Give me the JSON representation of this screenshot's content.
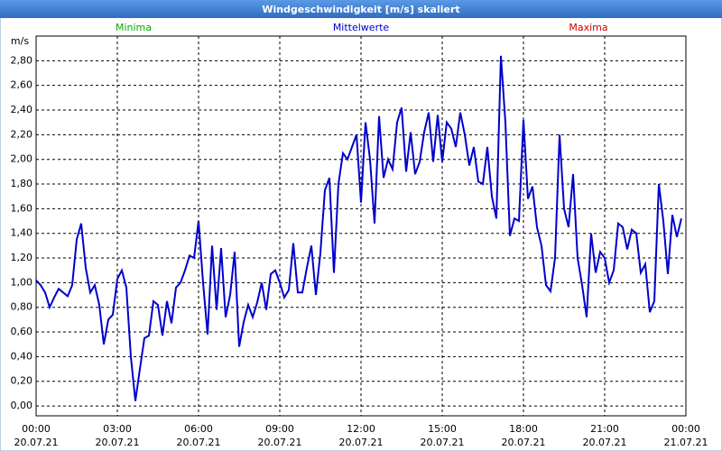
{
  "chart_data": {
    "type": "line",
    "title": "Windgeschwindigkeit [m/s] skaliert",
    "ylabel": "m/s",
    "annotations": [
      {
        "text": "Minima",
        "color": "#00aa00"
      },
      {
        "text": "Maxima",
        "color": "#cc0000"
      }
    ],
    "x": [
      0,
      10,
      20,
      30,
      40,
      50,
      60,
      70,
      80,
      90,
      100,
      110,
      120,
      130,
      140,
      150,
      160,
      170,
      180,
      190,
      200,
      210,
      220,
      230,
      240,
      250,
      260,
      270,
      280,
      290,
      300,
      310,
      320,
      330,
      340,
      350,
      360,
      370,
      380,
      390,
      400,
      410,
      420,
      430,
      440,
      450,
      460,
      470,
      480,
      490,
      500,
      510,
      520,
      530,
      540,
      550,
      560,
      570,
      580,
      590,
      600,
      610,
      620,
      630,
      640,
      650,
      660,
      670,
      680,
      690,
      700,
      710,
      720,
      730,
      740,
      750,
      760,
      770,
      780,
      790,
      800,
      810,
      820,
      830,
      840,
      850,
      860,
      870,
      880,
      890,
      900,
      910,
      920,
      930,
      940,
      950,
      960,
      970,
      980,
      990,
      1000,
      1010,
      1020,
      1030,
      1040,
      1050,
      1060,
      1070,
      1080,
      1090,
      1100,
      1110,
      1120,
      1130,
      1140,
      1150,
      1160,
      1170,
      1180,
      1190,
      1200,
      1210,
      1220,
      1230,
      1240,
      1250,
      1260,
      1270,
      1280,
      1290,
      1300,
      1310,
      1320,
      1330,
      1340,
      1350,
      1360,
      1370,
      1380,
      1390,
      1400,
      1410,
      1420,
      1430
    ],
    "series": [
      {
        "name": "Mittelwerte",
        "color": "#0000cc",
        "values": [
          1.02,
          0.98,
          0.92,
          0.8,
          0.88,
          0.95,
          0.92,
          0.89,
          0.98,
          1.35,
          1.48,
          1.12,
          0.92,
          0.98,
          0.82,
          0.5,
          0.7,
          0.74,
          1.03,
          1.1,
          0.96,
          0.4,
          0.04,
          0.3,
          0.55,
          0.57,
          0.85,
          0.82,
          0.57,
          0.85,
          0.67,
          0.96,
          1.0,
          1.1,
          1.22,
          1.2,
          1.5,
          1.0,
          0.58,
          1.3,
          0.78,
          1.28,
          0.72,
          0.9,
          1.25,
          0.48,
          0.68,
          0.82,
          0.72,
          0.84,
          1.0,
          0.78,
          1.07,
          1.1,
          1.0,
          0.88,
          0.94,
          1.32,
          0.92,
          0.92,
          1.12,
          1.3,
          0.9,
          1.24,
          1.75,
          1.85,
          1.08,
          1.8,
          2.05,
          2.0,
          2.1,
          2.2,
          1.65,
          2.3,
          2.0,
          1.48,
          2.35,
          1.85,
          2.0,
          1.92,
          2.3,
          2.42,
          1.9,
          2.22,
          1.88,
          1.98,
          2.22,
          2.38,
          1.98,
          2.36,
          1.98,
          2.3,
          2.25,
          2.1,
          2.38,
          2.2,
          1.95,
          2.1,
          1.82,
          1.8,
          2.1,
          1.7,
          1.52,
          2.84,
          2.3,
          1.38,
          1.52,
          1.5,
          2.32,
          1.68,
          1.78,
          1.45,
          1.3,
          0.98,
          0.93,
          1.2,
          2.2,
          1.6,
          1.45,
          1.88,
          1.2,
          0.98,
          0.72,
          1.4,
          1.08,
          1.25,
          1.2,
          1.0,
          1.1,
          1.48,
          1.45,
          1.27,
          1.43,
          1.4,
          1.08,
          1.15,
          0.76,
          0.85,
          1.8,
          1.5,
          1.07,
          1.55,
          1.37,
          1.52
        ]
      }
    ],
    "xlim": [
      0,
      1440
    ],
    "xticks": [
      {
        "value": 0,
        "label": "00:00",
        "date": "20.07.21"
      },
      {
        "value": 180,
        "label": "03:00",
        "date": "20.07.21"
      },
      {
        "value": 360,
        "label": "06:00",
        "date": "20.07.21"
      },
      {
        "value": 540,
        "label": "09:00",
        "date": "20.07.21"
      },
      {
        "value": 720,
        "label": "12:00",
        "date": "20.07.21"
      },
      {
        "value": 900,
        "label": "15:00",
        "date": "20.07.21"
      },
      {
        "value": 1080,
        "label": "18:00",
        "date": "20.07.21"
      },
      {
        "value": 1260,
        "label": "21:00",
        "date": "20.07.21"
      },
      {
        "value": 1440,
        "label": "00:00",
        "date": "21.07.21"
      }
    ],
    "ylim": [
      -0.08,
      3.0
    ],
    "yticks": [
      {
        "value": 0,
        "label": "0,00"
      },
      {
        "value": 0.2,
        "label": "0,20"
      },
      {
        "value": 0.4,
        "label": "0,40"
      },
      {
        "value": 0.6,
        "label": "0,60"
      },
      {
        "value": 0.8,
        "label": "0,80"
      },
      {
        "value": 1.0,
        "label": "1,00"
      },
      {
        "value": 1.2,
        "label": "1,20"
      },
      {
        "value": 1.4,
        "label": "1,40"
      },
      {
        "value": 1.6,
        "label": "1,60"
      },
      {
        "value": 1.8,
        "label": "1,80"
      },
      {
        "value": 2.0,
        "label": "2,00"
      },
      {
        "value": 2.2,
        "label": "2,20"
      },
      {
        "value": 2.4,
        "label": "2,40"
      },
      {
        "value": 2.6,
        "label": "2,60"
      },
      {
        "value": 2.8,
        "label": "2,80"
      }
    ],
    "grid": true
  }
}
